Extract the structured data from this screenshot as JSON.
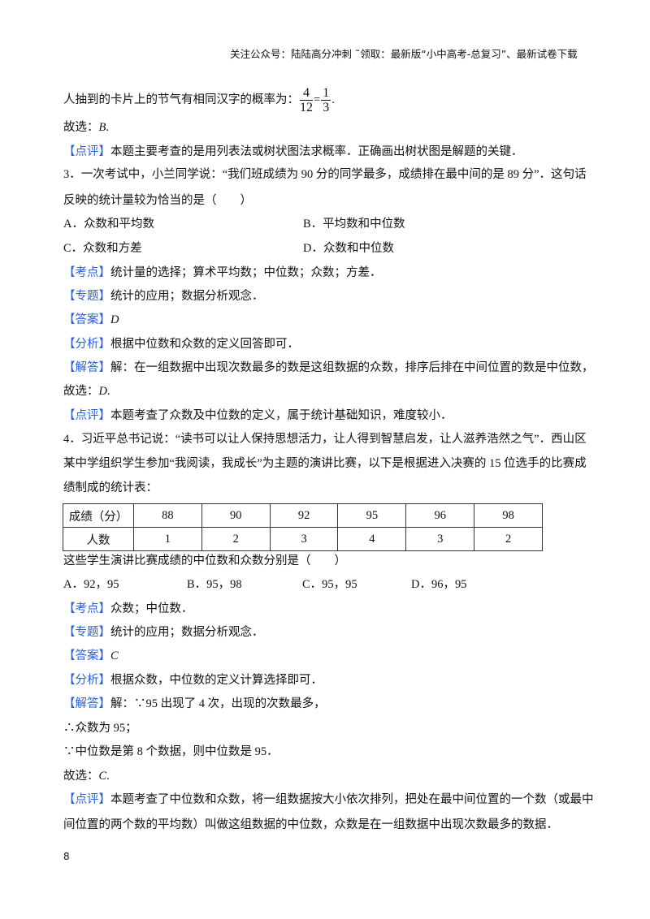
{
  "header": "关注公众号：陆陆高分冲刺  ˜领取：最新版“小中高考-总复习”、最新试卷下载",
  "prev": {
    "line1": "人抽到的卡片上的节气有相同汉字的概率为：",
    "frac1_num": "4",
    "frac1_den": "12",
    "eq": "=",
    "frac2_num": "1",
    "frac2_den": "3",
    "end": ".",
    "choose_prefix": "故选：",
    "choose": "B",
    "choose_end": ".",
    "review_tag": "【点评】",
    "review": "本题主要考查的是用列表法或树状图法求概率．正确画出树状图是解题的关键．"
  },
  "q3": {
    "stem1": "3．一次考试中，小兰同学说：“我们班成绩为 90 分的同学最多，成绩排在最中间的是 89 分”．这句话",
    "stem2": "反映的统计量较为恰当的是（　　）",
    "options": [
      "A．众数和平均数",
      "B．平均数和中位数",
      "C．众数和方差",
      "D．众数和中位数"
    ],
    "kaodian_tag": "【考点】",
    "kaodian": "统计量的选择；算术平均数；中位数；众数；方差．",
    "zhuanti_tag": "【专题】",
    "zhuanti": "统计的应用；数据分析观念．",
    "answer_tag": "【答案】",
    "answer": "D",
    "fenxi_tag": "【分析】",
    "fenxi": "根据中位数和众数的定义回答即可．",
    "jieda_tag": "【解答】",
    "jieda": "解：在一组数据中出现次数最多的数是这组数据的众数，排序后排在中间位置的数是中位数，",
    "choose_prefix": "故选：",
    "choose": "D",
    "choose_end": ".",
    "review_tag": "【点评】",
    "review": "本题考查了众数及中位数的定义，属于统计基础知识，难度较小．"
  },
  "q4": {
    "stem1": "4．习近平总书记说：“读书可以让人保持思想活力，让人得到智慧启发，让人滋养浩然之气”．西山区",
    "stem2": "某中学组织学生参加“我阅读，我成长”为主题的演讲比赛，以下是根据进入决赛的 15 位选手的比赛成",
    "stem3": "绩制成的统计表：",
    "table": {
      "row1": [
        "成绩（分）",
        "88",
        "90",
        "92",
        "95",
        "96",
        "98"
      ],
      "row2": [
        "人数",
        "1",
        "2",
        "3",
        "4",
        "3",
        "2"
      ]
    },
    "question": "这些学生演讲比赛成绩的中位数和众数分别是（　　）",
    "options": [
      "A．92，95",
      "B．95，98",
      "C．95，95",
      "D．96，95"
    ],
    "kaodian_tag": "【考点】",
    "kaodian": "众数；中位数．",
    "zhuanti_tag": "【专题】",
    "zhuanti": "统计的应用；数据分析观念．",
    "answer_tag": "【答案】",
    "answer": "C",
    "fenxi_tag": "【分析】",
    "fenxi": "根据众数，中位数的定义计算选择即可．",
    "jieda_tag": "【解答】",
    "jieda": "解：∵95 出现了 4 次，出现的次数最多，",
    "step2": "∴众数为 95；",
    "step3": "∵中位数是第 8 个数据，则中位数是 95．",
    "choose_prefix": "故选：",
    "choose": "C",
    "choose_end": ".",
    "review_tag": "【点评】",
    "review1": "本题考查了中位数和众数，将一组数据按大小依次排列，把处在最中间位置的一个数（或最中",
    "review2": "间位置的两个数的平均数）叫做这组数据的中位数，众数是在一组数据中出现次数最多的数据．"
  },
  "page_number": "8"
}
